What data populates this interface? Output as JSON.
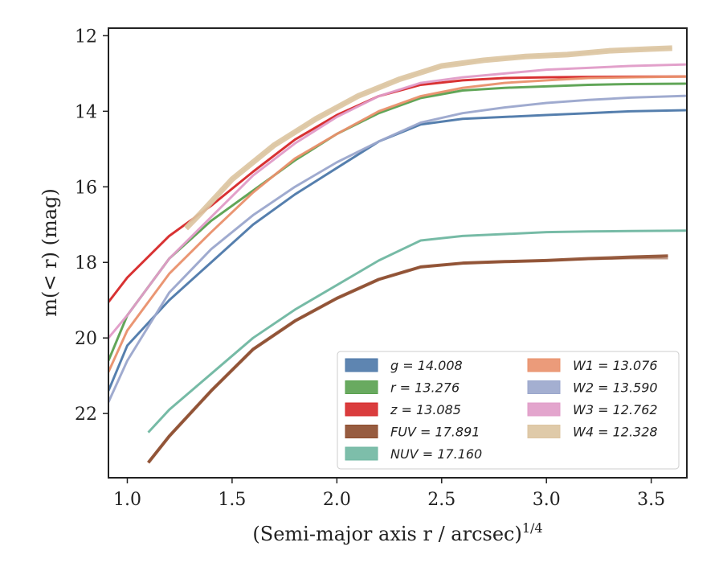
{
  "chart_data": {
    "type": "line",
    "title": "",
    "xlabel": "(Semi-major axis r / arcsec)",
    "xlabel_superscript": "1/4",
    "ylabel": "m(< r) (mag)",
    "xlim": [
      0.91,
      3.67
    ],
    "ylim": [
      23.7,
      11.8
    ],
    "y_inverted": true,
    "grid": false,
    "legend_position": "lower-right",
    "x_ticks": [
      "1.0",
      "1.5",
      "2.0",
      "2.5",
      "3.0",
      "3.5"
    ],
    "y_ticks": [
      "12",
      "14",
      "16",
      "18",
      "20",
      "22"
    ],
    "series": [
      {
        "name": "g",
        "legend_label": "g = 14.008",
        "color": "#4c78a8",
        "width": 3,
        "x": [
          0.91,
          1.0,
          1.2,
          1.4,
          1.6,
          1.8,
          2.0,
          2.2,
          2.4,
          2.6,
          2.8,
          3.0,
          3.2,
          3.4,
          3.67
        ],
        "y": [
          21.4,
          20.2,
          19.0,
          18.0,
          17.0,
          16.2,
          15.5,
          14.8,
          14.35,
          14.2,
          14.15,
          14.1,
          14.05,
          14.0,
          13.97
        ],
        "y_faint": [
          21.4,
          20.2,
          19.0,
          18.0,
          17.0,
          16.2,
          15.5,
          14.8,
          14.35,
          14.2,
          14.15,
          14.1,
          14.05,
          14.0,
          13.97
        ]
      },
      {
        "name": "r",
        "legend_label": "r = 13.276",
        "color": "#59a14f",
        "width": 3,
        "x": [
          0.91,
          1.0,
          1.2,
          1.4,
          1.6,
          1.8,
          2.0,
          2.2,
          2.4,
          2.6,
          2.8,
          3.0,
          3.2,
          3.4,
          3.67
        ],
        "y": [
          20.6,
          19.4,
          17.9,
          16.9,
          16.1,
          15.3,
          14.6,
          14.05,
          13.65,
          13.45,
          13.38,
          13.34,
          13.3,
          13.28,
          13.27
        ],
        "y_faint": [
          20.6,
          19.4,
          17.9,
          16.9,
          16.1,
          15.3,
          14.6,
          14.05,
          13.65,
          13.45,
          13.38,
          13.34,
          13.3,
          13.28,
          13.27
        ]
      },
      {
        "name": "z",
        "legend_label": "z = 13.085",
        "color": "#d62728",
        "width": 3,
        "x": [
          0.91,
          1.0,
          1.2,
          1.4,
          1.6,
          1.8,
          2.0,
          2.2,
          2.4,
          2.6,
          2.8,
          3.0,
          3.2,
          3.4,
          3.67
        ],
        "y": [
          19.05,
          18.4,
          17.3,
          16.5,
          15.6,
          14.75,
          14.1,
          13.6,
          13.3,
          13.18,
          13.12,
          13.1,
          13.09,
          13.085,
          13.08
        ],
        "y_faint": [
          19.05,
          18.4,
          17.3,
          16.5,
          15.6,
          14.75,
          14.1,
          13.6,
          13.3,
          13.18,
          13.12,
          13.1,
          13.09,
          13.085,
          13.08
        ]
      },
      {
        "name": "FUV",
        "legend_label": "FUV = 17.891",
        "color": "#8c4a2b",
        "width": 4,
        "x": [
          1.1,
          1.2,
          1.4,
          1.6,
          1.8,
          2.0,
          2.2,
          2.4,
          2.6,
          2.8,
          3.0,
          3.2,
          3.4,
          3.58
        ],
        "y": [
          23.3,
          22.6,
          21.4,
          20.3,
          19.55,
          18.95,
          18.45,
          18.12,
          18.02,
          17.98,
          17.95,
          17.9,
          17.86,
          17.83
        ],
        "y_faint": [
          23.3,
          22.6,
          21.4,
          20.3,
          19.55,
          18.95,
          18.45,
          18.12,
          18.02,
          17.98,
          17.95,
          17.92,
          17.9,
          17.9
        ]
      },
      {
        "name": "NUV",
        "legend_label": "NUV = 17.160",
        "color": "#6fb7a1",
        "width": 3,
        "x": [
          1.1,
          1.2,
          1.4,
          1.6,
          1.8,
          2.0,
          2.2,
          2.4,
          2.6,
          2.8,
          3.0,
          3.2,
          3.4,
          3.67
        ],
        "y": [
          22.5,
          21.9,
          20.95,
          20.0,
          19.25,
          18.6,
          17.95,
          17.42,
          17.3,
          17.25,
          17.2,
          17.18,
          17.17,
          17.16
        ],
        "y_faint": [
          22.5,
          21.9,
          20.95,
          20.0,
          19.25,
          18.6,
          17.95,
          17.42,
          17.3,
          17.25,
          17.2,
          17.18,
          17.17,
          17.16
        ]
      },
      {
        "name": "W1",
        "legend_label": "W1 = 13.076",
        "color": "#e9906b",
        "width": 3,
        "x": [
          0.91,
          1.0,
          1.2,
          1.4,
          1.6,
          1.8,
          2.0,
          2.2,
          2.4,
          2.6,
          2.8,
          3.0,
          3.2,
          3.4,
          3.67
        ],
        "y": [
          20.9,
          19.8,
          18.3,
          17.2,
          16.15,
          15.25,
          14.6,
          14.0,
          13.6,
          13.38,
          13.25,
          13.18,
          13.12,
          13.1,
          13.08
        ],
        "y_faint": [
          20.9,
          19.8,
          18.3,
          17.2,
          16.15,
          15.25,
          14.6,
          14.0,
          13.6,
          13.38,
          13.25,
          13.18,
          13.12,
          13.1,
          13.08
        ]
      },
      {
        "name": "W2",
        "legend_label": "W2 = 13.590",
        "color": "#9aa6cc",
        "width": 3,
        "x": [
          0.91,
          1.0,
          1.2,
          1.4,
          1.6,
          1.8,
          2.0,
          2.2,
          2.4,
          2.6,
          2.8,
          3.0,
          3.2,
          3.4,
          3.67
        ],
        "y": [
          21.7,
          20.6,
          18.8,
          17.65,
          16.75,
          16.0,
          15.35,
          14.8,
          14.3,
          14.05,
          13.9,
          13.78,
          13.7,
          13.64,
          13.59
        ],
        "y_faint": [
          21.7,
          20.6,
          18.8,
          17.65,
          16.75,
          16.0,
          15.35,
          14.8,
          14.3,
          14.05,
          13.9,
          13.78,
          13.7,
          13.64,
          13.59
        ]
      },
      {
        "name": "W3",
        "legend_label": "W3 = 12.762",
        "color": "#e09bc8",
        "width": 3,
        "x": [
          0.91,
          1.0,
          1.2,
          1.4,
          1.6,
          1.8,
          2.0,
          2.2,
          2.4,
          2.6,
          2.8,
          3.0,
          3.2,
          3.4,
          3.67
        ],
        "y": [
          20.0,
          19.4,
          17.9,
          16.8,
          15.7,
          14.85,
          14.15,
          13.6,
          13.25,
          13.1,
          13.0,
          12.9,
          12.85,
          12.8,
          12.76
        ],
        "y_faint": [
          20.0,
          19.4,
          17.9,
          16.8,
          15.7,
          14.85,
          14.15,
          13.6,
          13.25,
          13.1,
          13.0,
          12.9,
          12.85,
          12.8,
          12.76
        ]
      },
      {
        "name": "W4",
        "legend_label": "W4 = 12.328",
        "color": "#dcc4a0",
        "width": 7,
        "x": [
          1.28,
          1.35,
          1.5,
          1.7,
          1.9,
          2.1,
          2.3,
          2.5,
          2.7,
          2.9,
          3.1,
          3.3,
          3.5,
          3.6
        ],
        "y": [
          17.1,
          16.7,
          15.8,
          14.9,
          14.2,
          13.6,
          13.15,
          12.8,
          12.65,
          12.55,
          12.5,
          12.4,
          12.35,
          12.33
        ],
        "y_faint": [
          17.1,
          16.7,
          15.8,
          14.9,
          14.2,
          13.6,
          13.15,
          12.8,
          12.65,
          12.55,
          12.5,
          12.4,
          12.35,
          12.33
        ]
      }
    ]
  }
}
